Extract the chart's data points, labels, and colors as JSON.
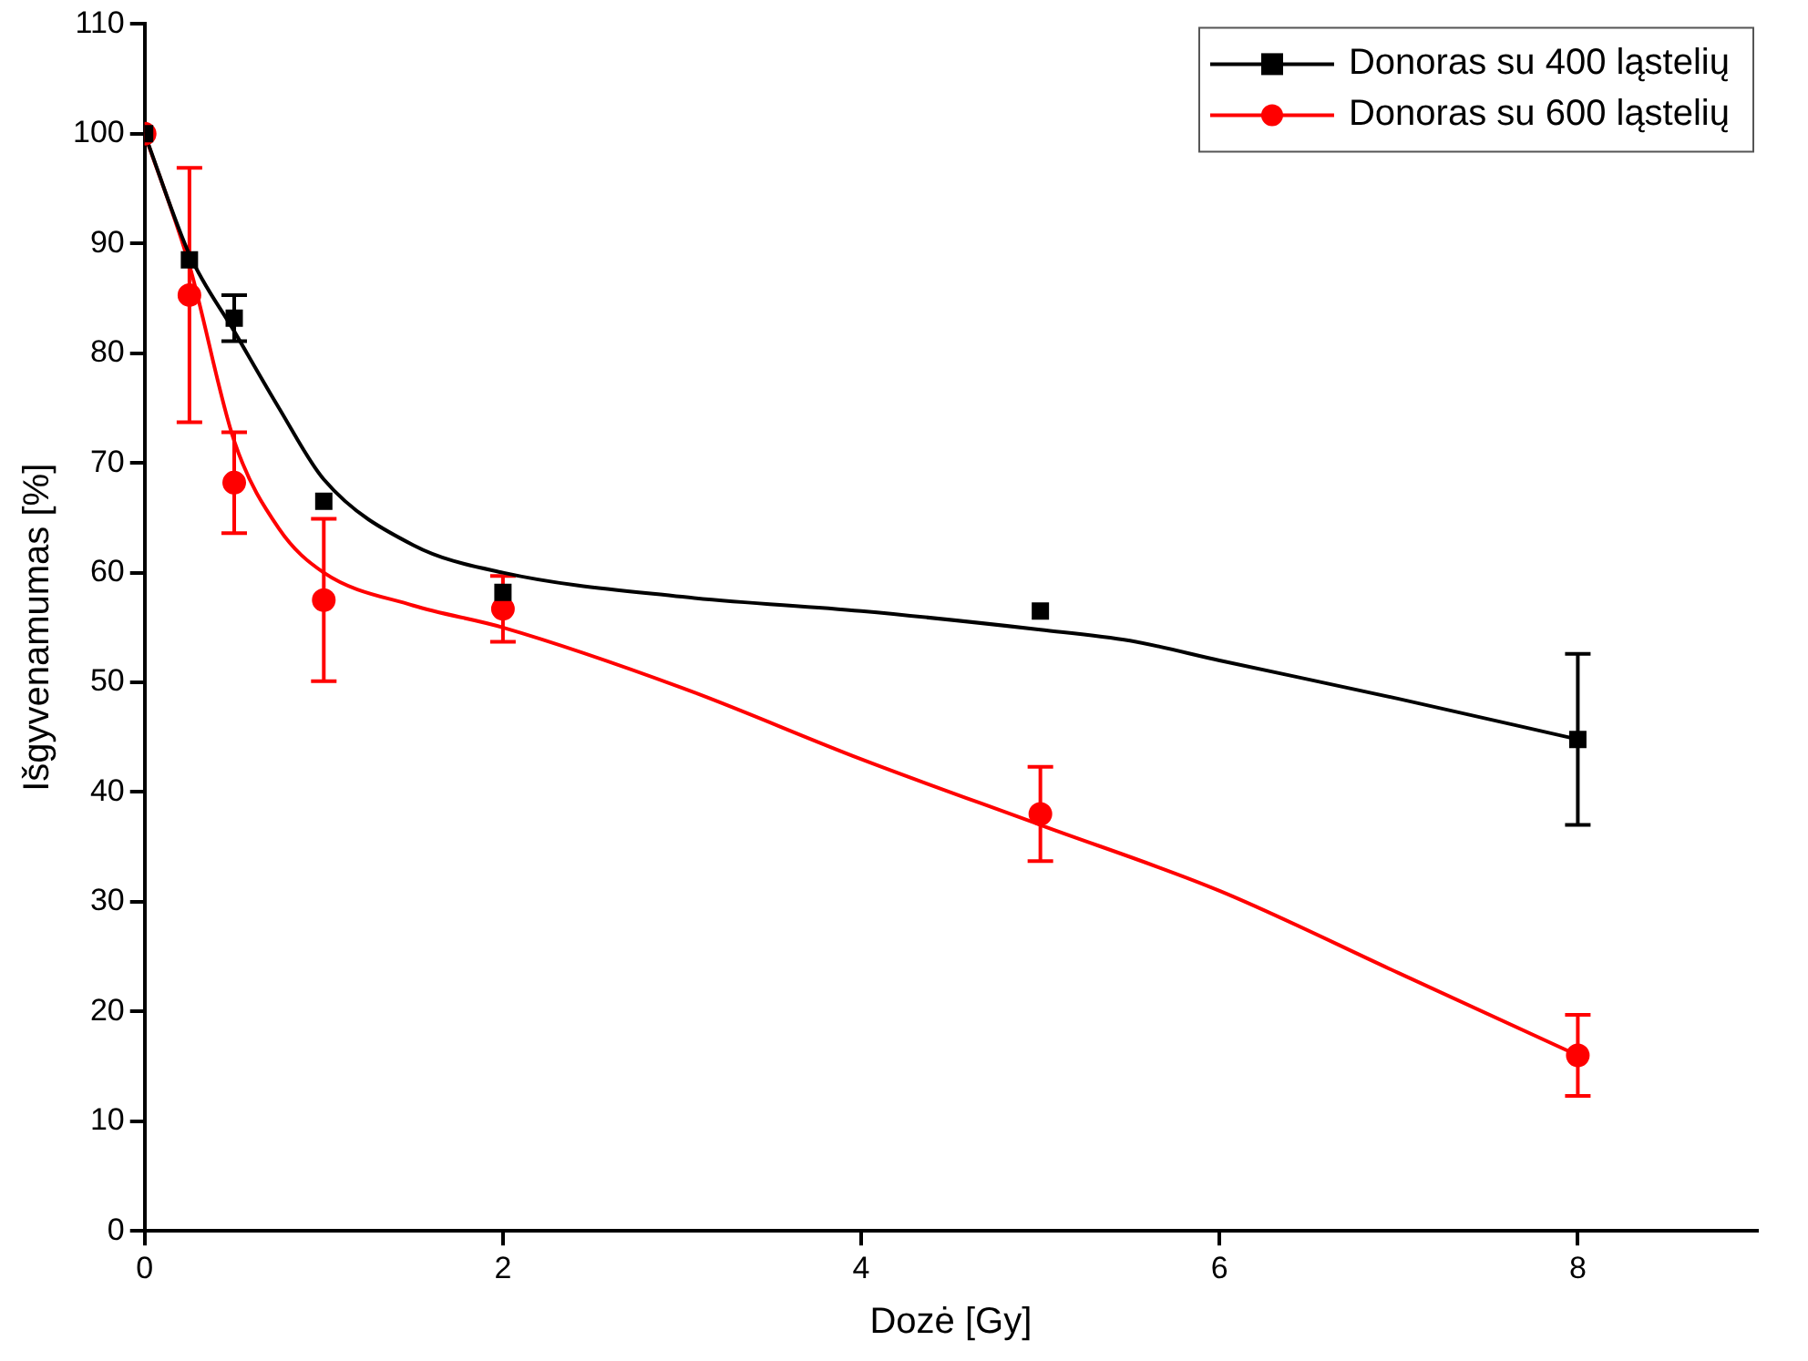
{
  "chart_data": {
    "type": "scatter",
    "xlabel": "Dozė [Gy]",
    "ylabel": "Išgyvenamumas [%]",
    "xlim": [
      0,
      9
    ],
    "xticks": [
      0,
      2,
      4,
      6,
      8
    ],
    "ylim": [
      0,
      110
    ],
    "yticks": [
      0,
      10,
      20,
      30,
      40,
      50,
      60,
      70,
      80,
      90,
      100,
      110
    ],
    "grid": false,
    "legend": "top right",
    "series": [
      {
        "name": "Donoras su 400 ląstelių",
        "color": "#000000",
        "marker": "square",
        "x": [
          0,
          0.25,
          0.5,
          1,
          2,
          5,
          8
        ],
        "values": [
          100,
          88.5,
          83.2,
          66.5,
          58.2,
          56.5,
          44.8
        ],
        "errors": [
          null,
          null,
          2.1,
          null,
          null,
          null,
          7.8
        ]
      },
      {
        "name": "Donoras su 600 ląstelių",
        "color": "#ff0000",
        "marker": "circle",
        "x": [
          0,
          0.25,
          0.5,
          1,
          2,
          5,
          8
        ],
        "values": [
          100,
          85.3,
          68.2,
          57.5,
          56.7,
          38,
          16
        ],
        "errors": [
          null,
          11.6,
          4.6,
          7.4,
          3,
          4.3,
          3.7
        ]
      },
      {
        "type": "line",
        "color": "#000000",
        "marker": "none",
        "x": [
          0,
          0.25,
          0.5,
          0.75,
          1,
          1.5,
          2,
          3,
          4,
          5,
          5.5,
          6,
          7,
          8
        ],
        "values": [
          100,
          89,
          82,
          75,
          68.5,
          62.5,
          60,
          57.8,
          56.5,
          54.8,
          53.8,
          52,
          48.5,
          44.8
        ]
      },
      {
        "type": "line",
        "color": "#ff0000",
        "marker": "none",
        "x": [
          0,
          0.25,
          0.5,
          0.75,
          1,
          1.5,
          2,
          3,
          4,
          5,
          6,
          7,
          8
        ],
        "values": [
          100,
          88,
          72,
          64,
          60,
          57,
          55,
          49.5,
          43,
          37,
          31,
          23.5,
          16
        ]
      }
    ]
  }
}
